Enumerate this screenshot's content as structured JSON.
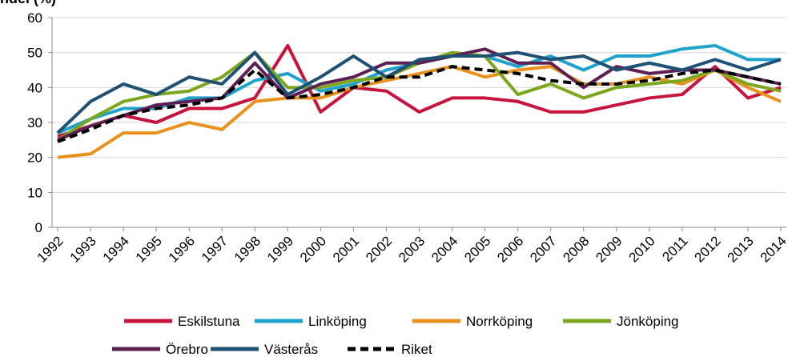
{
  "chart_data": {
    "type": "line",
    "title": "ndel (%)",
    "categories": [
      "1992",
      "1993",
      "1994",
      "1995",
      "1996",
      "1997",
      "1998",
      "1999",
      "2000",
      "2001",
      "2002",
      "2003",
      "2004",
      "2005",
      "2006",
      "2007",
      "2008",
      "2009",
      "2010",
      "2011",
      "2012",
      "2013",
      "2014"
    ],
    "ylim": [
      0,
      60
    ],
    "yticks": [
      0,
      10,
      20,
      30,
      40,
      50,
      60
    ],
    "grid": true,
    "legend": "bottom",
    "series": [
      {
        "name": "Eskilstuna",
        "color": "#c8143c",
        "dash": false,
        "values": [
          26,
          29,
          32,
          30,
          34,
          34,
          37,
          52,
          33,
          40,
          39,
          33,
          37,
          37,
          36,
          33,
          33,
          35,
          37,
          38,
          46,
          37,
          40
        ]
      },
      {
        "name": "Linköping",
        "color": "#1fa3cc",
        "dash": false,
        "values": [
          27,
          31,
          34,
          34,
          37,
          37,
          42,
          44,
          39,
          41,
          45,
          47,
          49,
          49,
          46,
          49,
          45,
          49,
          49,
          51,
          52,
          48,
          48
        ]
      },
      {
        "name": "Norrköping",
        "color": "#e8921c",
        "dash": false,
        "values": [
          20,
          21,
          27,
          27,
          30,
          28,
          36,
          37,
          37,
          40,
          42,
          44,
          46,
          43,
          45,
          46,
          41,
          41,
          43,
          41,
          45,
          40,
          36
        ]
      },
      {
        "name": "Jönköping",
        "color": "#7ba61e",
        "dash": false,
        "values": [
          25,
          31,
          36,
          38,
          39,
          43,
          50,
          40,
          40,
          42,
          43,
          47,
          50,
          49,
          38,
          41,
          37,
          40,
          41,
          42,
          45,
          41,
          39
        ]
      },
      {
        "name": "Örebro",
        "color": "#5e1f52",
        "dash": false,
        "values": [
          25,
          29,
          32,
          35,
          36,
          37,
          47,
          37,
          41,
          43,
          47,
          47,
          49,
          51,
          47,
          47,
          40,
          46,
          44,
          45,
          45,
          43,
          41
        ]
      },
      {
        "name": "Västerås",
        "color": "#1f5175",
        "dash": false,
        "values": [
          27,
          36,
          41,
          38,
          43,
          41,
          50,
          38,
          43,
          49,
          43,
          48,
          49,
          49,
          50,
          48,
          49,
          45,
          47,
          45,
          48,
          45,
          48
        ]
      },
      {
        "name": "Riket",
        "color": "#000000",
        "dash": true,
        "values": [
          24.5,
          28,
          32,
          34,
          35,
          37,
          45,
          37,
          38,
          40,
          43,
          43,
          46,
          45,
          44,
          42,
          41,
          41,
          42,
          44,
          45,
          43,
          41
        ]
      }
    ]
  }
}
